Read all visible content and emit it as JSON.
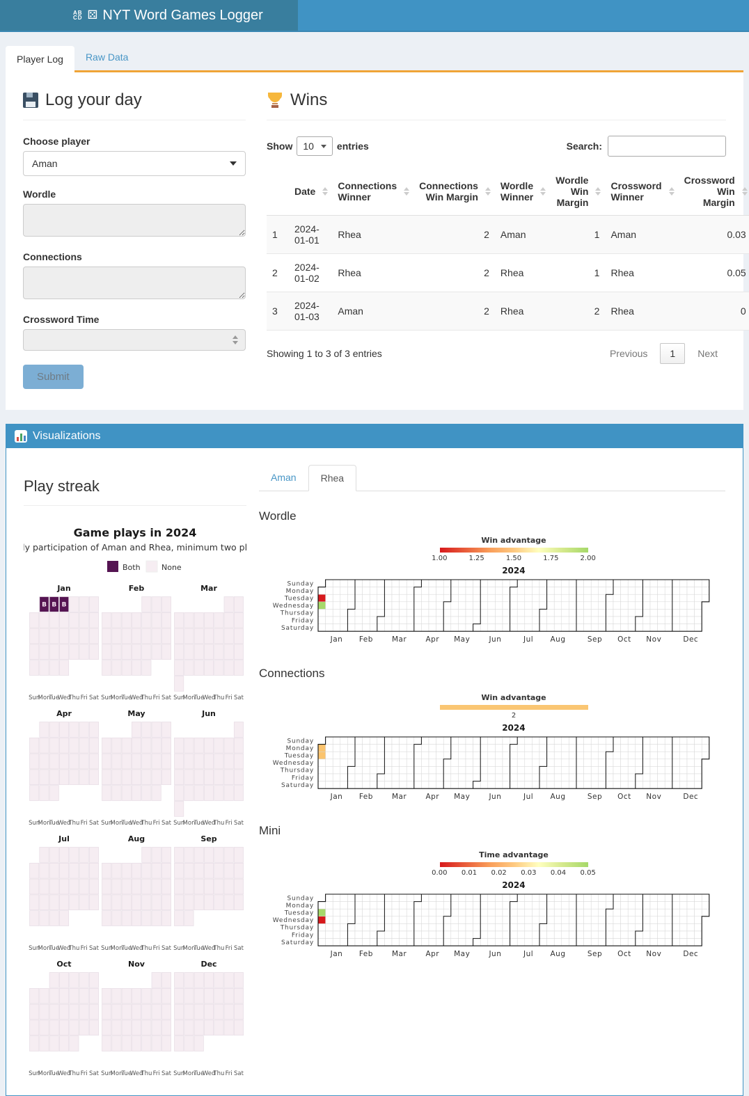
{
  "header": {
    "title": "NYT Word Games Logger",
    "icon_abcd_top": "AB",
    "icon_abcd_bottom": "CD",
    "icon_dice": "⚄"
  },
  "nav_tabs": [
    {
      "label": "Player Log",
      "active": true
    },
    {
      "label": "Raw Data",
      "active": false
    }
  ],
  "log_form": {
    "title": "Log your day",
    "player_label": "Choose player",
    "player_value": "Aman",
    "wordle_label": "Wordle",
    "connections_label": "Connections",
    "crossword_label": "Crossword Time",
    "submit_label": "Submit"
  },
  "wins": {
    "title": "Wins",
    "show_label": "Show",
    "page_size": "10",
    "entries_label": "entries",
    "search_label": "Search:",
    "columns": [
      "",
      "Date",
      "Connections Winner",
      "Connections Win Margin",
      "Wordle Winner",
      "Wordle Win Margin",
      "Crossword Winner",
      "Crossword Win Margin"
    ],
    "rows": [
      [
        "1",
        "2024-01-01",
        "Rhea",
        "2",
        "Aman",
        "1",
        "Aman",
        "0.03"
      ],
      [
        "2",
        "2024-01-02",
        "Rhea",
        "2",
        "Rhea",
        "1",
        "Rhea",
        "0.05"
      ],
      [
        "3",
        "2024-01-03",
        "Aman",
        "2",
        "Rhea",
        "2",
        "Rhea",
        "0"
      ]
    ],
    "info": "Showing 1 to 3 of 3 entries",
    "pagination": {
      "previous": "Previous",
      "page": "1",
      "next": "Next"
    }
  },
  "visualizations": {
    "title": "Visualizations",
    "play_streak_title": "Play streak",
    "player_tabs": [
      {
        "label": "Aman",
        "active": false
      },
      {
        "label": "Rhea",
        "active": true
      }
    ]
  },
  "colors": {
    "navbar_brand": "#397e9e",
    "navbar": "#4093c4",
    "tab_accent_orange": "#f0a437",
    "streak_both": "#551452",
    "streak_none": "#f6edf2",
    "cell_red": "#d7191c",
    "cell_green": "#a6d96a",
    "cell_orange": "#fbc46e"
  },
  "chart_data": [
    {
      "type": "heatmap",
      "name": "play-streak-calendar",
      "title": "Game plays in 2024",
      "subtitle": "Daily participation of Aman and Rhea, minimum two plays",
      "legend": [
        {
          "label": "Both",
          "color": "#551452"
        },
        {
          "label": "None",
          "color": "#f6edf2"
        }
      ],
      "year": "2024",
      "month_labels": [
        "Jan",
        "Feb",
        "Mar",
        "Apr",
        "May",
        "Jun",
        "Jul",
        "Aug",
        "Sep",
        "Oct",
        "Nov",
        "Dec"
      ],
      "month_first_dow": [
        1,
        4,
        5,
        1,
        3,
        6,
        1,
        4,
        0,
        2,
        5,
        0
      ],
      "month_days": [
        31,
        29,
        31,
        30,
        31,
        30,
        31,
        31,
        30,
        31,
        30,
        31
      ],
      "weekday_labels": [
        "Sun",
        "Mon",
        "Tue",
        "Wed",
        "Thu",
        "Fri",
        "Sat"
      ],
      "marked_days": [
        {
          "month": 0,
          "day": 1,
          "label": "B"
        },
        {
          "month": 0,
          "day": 2,
          "label": "B"
        },
        {
          "month": 0,
          "day": 3,
          "label": "B"
        }
      ]
    },
    {
      "type": "heatmap",
      "name": "wordle-year-heatmap",
      "section": "Wordle",
      "year_title": "2024",
      "legend": {
        "title": "Win advantage",
        "style": "gradient",
        "colors": [
          "#d7191c",
          "#e85b3a",
          "#f99d59",
          "#fec980",
          "#ffffbf",
          "#d3e88b",
          "#a6d96a"
        ],
        "ticks": [
          "1.00",
          "1.25",
          "1.50",
          "1.75",
          "2.00"
        ]
      },
      "weekday_labels": [
        "Sunday",
        "Monday",
        "Tuesday",
        "Wednesday",
        "Thursday",
        "Friday",
        "Saturday"
      ],
      "month_labels": [
        "Jan",
        "Feb",
        "Mar",
        "Apr",
        "May",
        "Jun",
        "Jul",
        "Aug",
        "Sep",
        "Oct",
        "Nov",
        "Dec"
      ],
      "cells": [
        {
          "date": "2024-01-02",
          "week": 0,
          "dow": 2,
          "value": 1.0,
          "color": "#d7191c"
        },
        {
          "date": "2024-01-03",
          "week": 0,
          "dow": 3,
          "value": 2.0,
          "color": "#a6d96a"
        }
      ]
    },
    {
      "type": "heatmap",
      "name": "connections-year-heatmap",
      "section": "Connections",
      "year_title": "2024",
      "legend": {
        "title": "Win advantage",
        "style": "solid",
        "colors": [
          "#fac673"
        ],
        "ticks": [
          "2"
        ]
      },
      "weekday_labels": [
        "Sunday",
        "Monday",
        "Tuesday",
        "Wednesday",
        "Thursday",
        "Friday",
        "Saturday"
      ],
      "month_labels": [
        "Jan",
        "Feb",
        "Mar",
        "Apr",
        "May",
        "Jun",
        "Jul",
        "Aug",
        "Sep",
        "Oct",
        "Nov",
        "Dec"
      ],
      "cells": [
        {
          "date": "2024-01-01",
          "week": 0,
          "dow": 1,
          "value": 2,
          "color": "#fbc46e"
        },
        {
          "date": "2024-01-02",
          "week": 0,
          "dow": 2,
          "value": 2,
          "color": "#fbc46e"
        }
      ]
    },
    {
      "type": "heatmap",
      "name": "mini-year-heatmap",
      "section": "Mini",
      "year_title": "2024",
      "legend": {
        "title": "Time advantage",
        "style": "gradient",
        "colors": [
          "#d7191c",
          "#e85b3a",
          "#f99d59",
          "#fec980",
          "#ffffbf",
          "#d3e88b",
          "#a6d96a"
        ],
        "ticks": [
          "0.00",
          "0.01",
          "0.02",
          "0.03",
          "0.04",
          "0.05"
        ]
      },
      "weekday_labels": [
        "Sunday",
        "Monday",
        "Tuesday",
        "Wednesday",
        "Thursday",
        "Friday",
        "Saturday"
      ],
      "month_labels": [
        "Jan",
        "Feb",
        "Mar",
        "Apr",
        "May",
        "Jun",
        "Jul",
        "Aug",
        "Sep",
        "Oct",
        "Nov",
        "Dec"
      ],
      "cells": [
        {
          "date": "2024-01-02",
          "week": 0,
          "dow": 2,
          "value": 0.05,
          "color": "#a6d96a"
        },
        {
          "date": "2024-01-03",
          "week": 0,
          "dow": 3,
          "value": 0.0,
          "color": "#d7191c"
        }
      ]
    }
  ]
}
